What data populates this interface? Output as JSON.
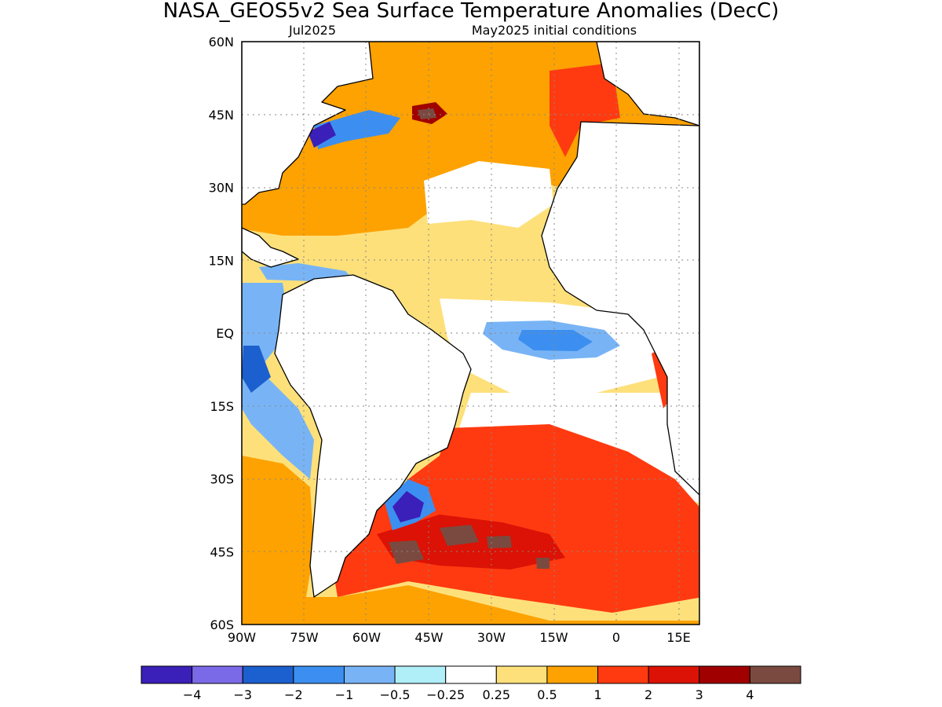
{
  "title": "NASA_GEOS5v2 Sea Surface Temperature Anomalies (DecC)",
  "subtitle_left": "Jul2025",
  "subtitle_right": "May2025 initial conditions",
  "map": {
    "lon_range": [
      -90,
      20
    ],
    "lat_range": [
      -60,
      60
    ],
    "lat_labels": [
      {
        "text": "60N",
        "lat": 60
      },
      {
        "text": "45N",
        "lat": 45
      },
      {
        "text": "30N",
        "lat": 30
      },
      {
        "text": "15N",
        "lat": 15
      },
      {
        "text": "EQ",
        "lat": 0
      },
      {
        "text": "15S",
        "lat": -15
      },
      {
        "text": "30S",
        "lat": -30
      },
      {
        "text": "45S",
        "lat": -45
      },
      {
        "text": "60S",
        "lat": -60
      }
    ],
    "lon_labels": [
      {
        "text": "90W",
        "lon": -90
      },
      {
        "text": "75W",
        "lon": -75
      },
      {
        "text": "60W",
        "lon": -60
      },
      {
        "text": "45W",
        "lon": -45
      },
      {
        "text": "30W",
        "lon": -30
      },
      {
        "text": "15W",
        "lon": -15
      },
      {
        "text": "0",
        "lon": 0
      },
      {
        "text": "15E",
        "lon": 15
      }
    ],
    "gridlines": "dotted"
  },
  "colorbar": {
    "bins": [
      {
        "color": "#3a1fb8"
      },
      {
        "color": "#7b6ae8"
      },
      {
        "color": "#1c5fcf"
      },
      {
        "color": "#3c8ff0"
      },
      {
        "color": "#78b4f5"
      },
      {
        "color": "#b0eef8"
      },
      {
        "color": "#ffffff"
      },
      {
        "color": "#fde07a"
      },
      {
        "color": "#fda200"
      },
      {
        "color": "#ff3a10"
      },
      {
        "color": "#db1205"
      },
      {
        "color": "#a00000"
      },
      {
        "color": "#7a4a40"
      }
    ],
    "labels": [
      "−4",
      "−3",
      "−2",
      "−1",
      "−0.5",
      "−0.25",
      "0.25",
      "0.5",
      "1",
      "2",
      "3",
      "4"
    ]
  },
  "colors": {
    "land": "#ffffff",
    "coast": "#000000",
    "warm_strong": "#db1205",
    "warm": "#ff3a10",
    "orange": "#fda200",
    "yellow": "#fde07a",
    "light_blue": "#b0eef8",
    "blue": "#78b4f5",
    "mid_blue": "#3c8ff0",
    "dark_blue": "#1c5fcf",
    "violet": "#7b6ae8",
    "deep_violet": "#3a1fb8",
    "brown": "#7a4a40",
    "dark_red": "#a00000"
  }
}
